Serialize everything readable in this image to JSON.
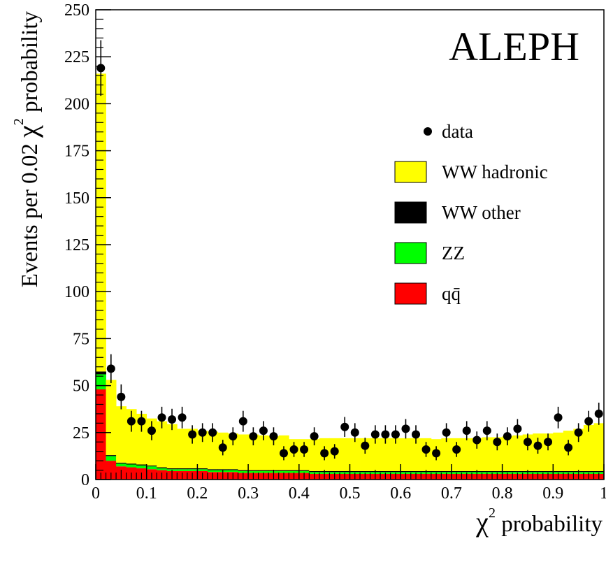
{
  "chart_data": {
    "type": "bar",
    "stacked": true,
    "annotation": "ALEPH",
    "xlabel_symbol": "χ",
    "xlabel_sup": "2",
    "xlabel_rest": " probability",
    "ylabel_pre": "Events per 0.02 ",
    "ylabel_symbol": "χ",
    "ylabel_sup": "2",
    "ylabel_rest": " probability",
    "xlim": [
      0,
      1
    ],
    "ylim": [
      0,
      250
    ],
    "bin_width": 0.02,
    "x_ticks": [
      0,
      0.1,
      0.2,
      0.3,
      0.4,
      0.5,
      0.6,
      0.7,
      0.8,
      0.9,
      1
    ],
    "x_tick_labels": [
      "0",
      "0.1",
      "0.2",
      "0.3",
      "0.4",
      "0.5",
      "0.6",
      "0.7",
      "0.8",
      "0.9",
      "1"
    ],
    "y_ticks": [
      0,
      25,
      50,
      75,
      100,
      125,
      150,
      175,
      200,
      225,
      250
    ],
    "y_tick_labels": [
      "0",
      "25",
      "50",
      "75",
      "100",
      "125",
      "150",
      "175",
      "200",
      "225",
      "250"
    ],
    "grid": false,
    "legend_placement": "right",
    "legend": [
      {
        "key": "data",
        "label": "data",
        "marker": "point",
        "color": "#000000"
      },
      {
        "key": "ww_hadronic",
        "label": "WW hadronic",
        "marker": "box",
        "color": "#ffff00"
      },
      {
        "key": "ww_other",
        "label": "WW other",
        "marker": "box",
        "color": "#000000"
      },
      {
        "key": "zz",
        "label": "ZZ",
        "marker": "box",
        "color": "#00ff00"
      },
      {
        "key": "qq",
        "label": "qq̄",
        "marker": "box",
        "color": "#ff0000"
      }
    ],
    "series": [
      {
        "key": "qq",
        "color": "#ff0000",
        "values": [
          48,
          10,
          7,
          6.5,
          6,
          5.5,
          5,
          4.5,
          4.5,
          4.5,
          4.5,
          4,
          4,
          4,
          3.5,
          3.5,
          3.5,
          3.5,
          3.5,
          3.5,
          3.5,
          3,
          3,
          3,
          3,
          3,
          3,
          3,
          3,
          3,
          3,
          3,
          3,
          3,
          3,
          3,
          3,
          3,
          3,
          3,
          3,
          3,
          3,
          3,
          3,
          3,
          3,
          3,
          3,
          3
        ]
      },
      {
        "key": "zz",
        "color": "#00ff00",
        "values": [
          8,
          2.5,
          1.5,
          1.5,
          1.5,
          1.5,
          1,
          1,
          1,
          1,
          1,
          1,
          1,
          1,
          1,
          1,
          1,
          1,
          1,
          1,
          1,
          1,
          1,
          1,
          1,
          1,
          1,
          1,
          1,
          1,
          1,
          1,
          1,
          1,
          1,
          1,
          1,
          1,
          1,
          1,
          1,
          1,
          1,
          1,
          1,
          1,
          1,
          1,
          1,
          1
        ]
      },
      {
        "key": "ww_other",
        "color": "#000000",
        "values": [
          1.5,
          0.5,
          0.5,
          0.5,
          0.5,
          0.5,
          0.5,
          0.5,
          0.5,
          0.5,
          0.5,
          0.5,
          0.5,
          0.5,
          0.5,
          0.5,
          0.5,
          0.5,
          0.5,
          0.5,
          0.5,
          0.5,
          0.5,
          0.5,
          0.5,
          0.5,
          0.5,
          0.5,
          0.5,
          0.5,
          0.5,
          0.5,
          0.5,
          0.5,
          0.5,
          0.5,
          0.5,
          0.5,
          0.5,
          0.5,
          0.5,
          0.5,
          0.5,
          0.5,
          0.5,
          0.5,
          0.5,
          0.5,
          0.5,
          0.5
        ]
      },
      {
        "key": "ww_hadronic",
        "color": "#ffff00",
        "values": [
          158.5,
          40,
          30,
          29,
          27,
          25,
          24.5,
          23.5,
          21,
          21,
          20,
          20,
          19.5,
          19,
          19,
          19,
          18.5,
          18,
          18.5,
          16.5,
          16.5,
          17,
          17.5,
          17.5,
          17.5,
          17.5,
          17.5,
          17.5,
          17.5,
          17.5,
          17.5,
          17.5,
          17.5,
          17,
          17.5,
          17.5,
          17.5,
          17.5,
          18,
          18,
          18.5,
          19,
          19.5,
          20,
          20,
          20.5,
          21.5,
          22.5,
          24.5,
          25.5
        ]
      }
    ],
    "data_points": {
      "x": [
        0.01,
        0.03,
        0.05,
        0.07,
        0.09,
        0.11,
        0.13,
        0.15,
        0.17,
        0.19,
        0.21,
        0.23,
        0.25,
        0.27,
        0.29,
        0.31,
        0.33,
        0.35,
        0.37,
        0.39,
        0.41,
        0.43,
        0.45,
        0.47,
        0.49,
        0.51,
        0.53,
        0.55,
        0.57,
        0.59,
        0.61,
        0.63,
        0.65,
        0.67,
        0.69,
        0.71,
        0.73,
        0.75,
        0.77,
        0.79,
        0.81,
        0.83,
        0.85,
        0.87,
        0.89,
        0.91,
        0.93,
        0.95,
        0.97,
        0.99
      ],
      "y": [
        219,
        59,
        44,
        31,
        31,
        26,
        33,
        32,
        33,
        24,
        25,
        25,
        17,
        23,
        31,
        23,
        26,
        23,
        14,
        16,
        16,
        23,
        14,
        15,
        28,
        25,
        18,
        24,
        24,
        24,
        27,
        24,
        16,
        14,
        25,
        16,
        26,
        21,
        26,
        20,
        23,
        27,
        20,
        18,
        20,
        33,
        17,
        25,
        31,
        35
      ]
    }
  }
}
